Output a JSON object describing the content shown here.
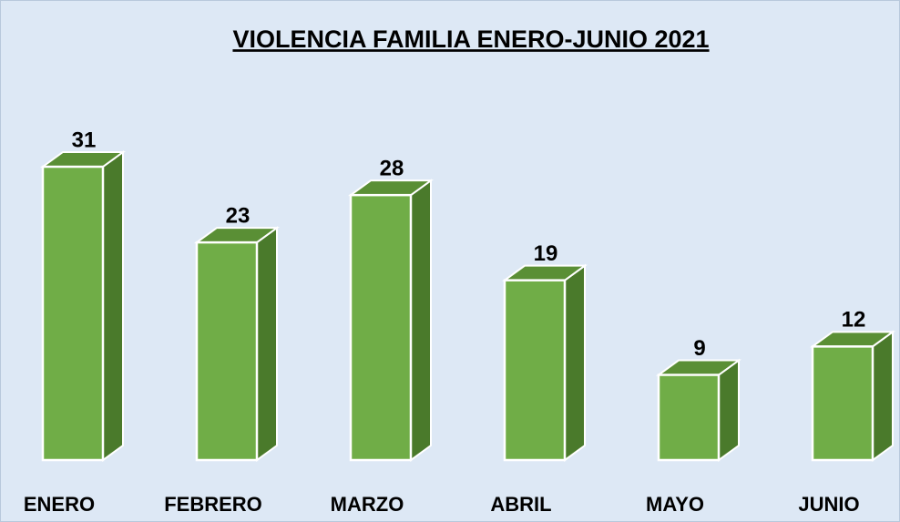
{
  "chart_data": {
    "type": "bar",
    "title": "VIOLENCIA FAMILIA ENERO-JUNIO 2021",
    "categories": [
      "ENERO",
      "FEBRERO",
      "MARZO",
      "ABRIL",
      "MAYO",
      "JUNIO"
    ],
    "values": [
      31,
      23,
      28,
      19,
      9,
      12
    ],
    "color": "#70ad47"
  }
}
